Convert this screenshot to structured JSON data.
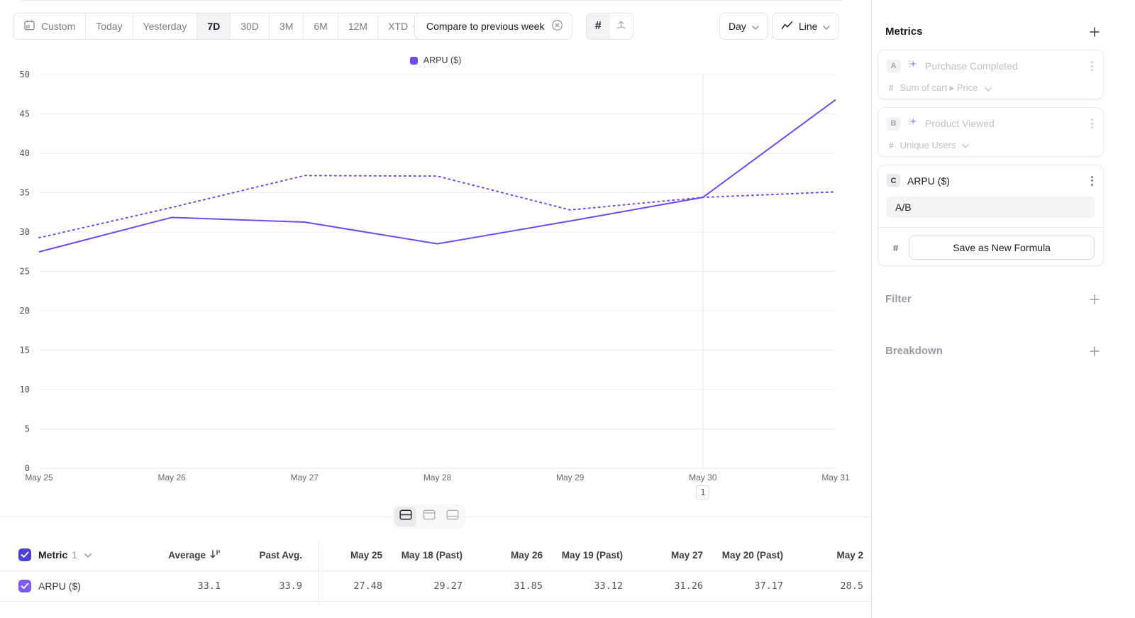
{
  "toolbar": {
    "date_ranges": [
      "Custom",
      "Today",
      "Yesterday",
      "7D",
      "30D",
      "3M",
      "6M",
      "12M",
      "XTD"
    ],
    "selected_range": "7D",
    "compare_label": "Compare to previous week",
    "interval_label": "Day",
    "chart_type_label": "Line"
  },
  "hash": "#",
  "chart_data": {
    "type": "line",
    "legend_position": "top-center",
    "grid": true,
    "color": "#6d4af3",
    "x": [
      "May 25",
      "May 26",
      "May 27",
      "May 28",
      "May 29",
      "May 30",
      "May 31"
    ],
    "series": [
      {
        "name": "ARPU ($)",
        "style": "solid",
        "values": [
          27.48,
          31.85,
          31.26,
          28.5,
          31.4,
          34.4,
          46.8
        ]
      },
      {
        "name": "ARPU ($) (Past)",
        "style": "dotted",
        "values": [
          29.27,
          33.12,
          37.17,
          37.1,
          32.8,
          34.4,
          35.1
        ]
      }
    ],
    "ylim": [
      0,
      50
    ],
    "yticks": [
      0,
      5,
      10,
      15,
      20,
      25,
      30,
      35,
      40,
      45,
      50
    ],
    "annotation": {
      "x_index": 5,
      "x_label": "May 30",
      "label": "1"
    }
  },
  "view_toggle": {
    "modes": [
      "split",
      "chart-only",
      "table-only"
    ],
    "selected": "split"
  },
  "table": {
    "metric_label": "Metric",
    "metric_count": "1",
    "columns": [
      "Average",
      "Past Avg.",
      "May 25",
      "May 18 (Past)",
      "May 26",
      "May 19 (Past)",
      "May 27",
      "May 20 (Past)",
      "May 2"
    ],
    "row": {
      "label": "ARPU ($)",
      "values": [
        "33.1",
        "33.9",
        "27.48",
        "29.27",
        "31.85",
        "33.12",
        "31.26",
        "37.17",
        "28.5"
      ]
    }
  },
  "sidebar": {
    "metrics_title": "Metrics",
    "cards": [
      {
        "badge": "A",
        "name": "Purchase Completed",
        "measure": "Sum of cart ▸ Price",
        "state": "inactive"
      },
      {
        "badge": "B",
        "name": "Product Viewed",
        "measure": "Unique Users",
        "state": "inactive"
      },
      {
        "badge": "C",
        "name": "ARPU ($)",
        "formula": "A/B",
        "save_button_label": "Save as New Formula",
        "state": "active"
      }
    ],
    "filter_title": "Filter",
    "breakdown_title": "Breakdown"
  }
}
